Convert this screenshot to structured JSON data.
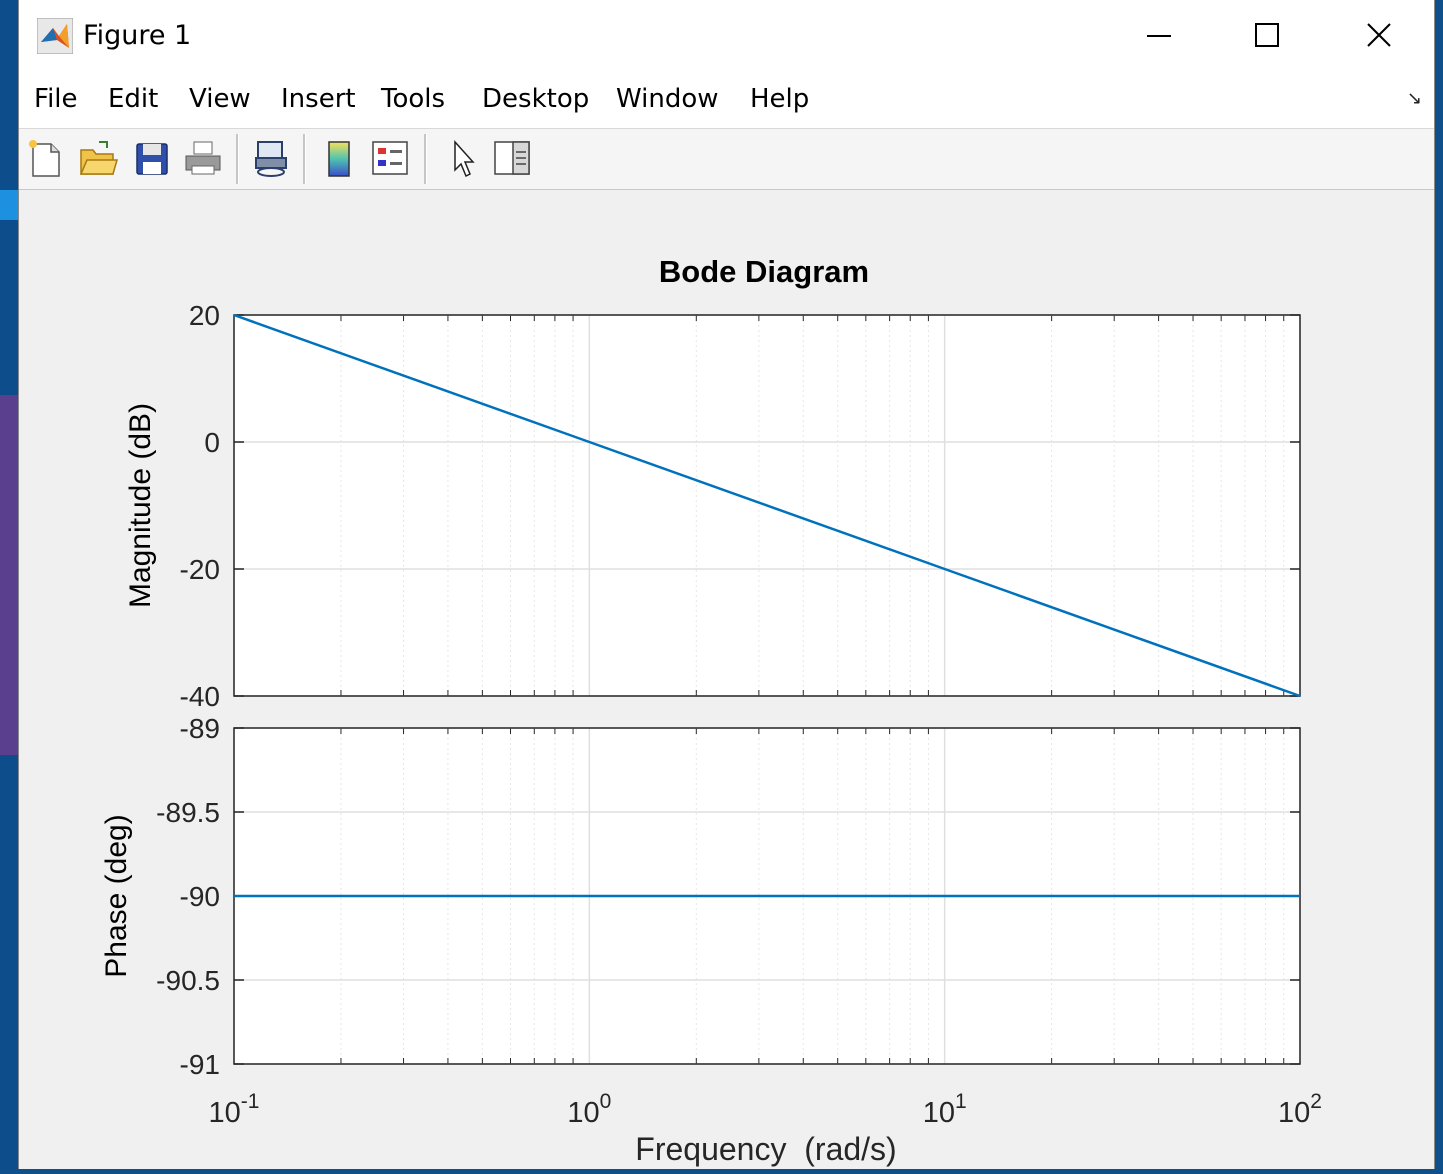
{
  "window": {
    "title": "Figure 1",
    "controls": {
      "minimize": "minimize-icon",
      "maximize": "maximize-icon",
      "close": "close-icon"
    }
  },
  "menubar": {
    "items": [
      "File",
      "Edit",
      "View",
      "Insert",
      "Tools",
      "Desktop",
      "Window",
      "Help"
    ]
  },
  "toolbar": {
    "buttons": [
      "new-figure-icon",
      "open-file-icon",
      "save-icon",
      "print-icon",
      "link-plot-icon",
      "colorbar-icon",
      "legend-icon",
      "edit-plot-arrow-icon",
      "property-inspector-icon"
    ]
  },
  "colors": {
    "line": "#0072bd",
    "axes": "#262626",
    "grid": "#dfdfdf",
    "figure_bg": "#f0f0f0"
  },
  "chart_data": {
    "type": "line",
    "title": "Bode Diagram",
    "xlabel": "Frequency  (rad/s)",
    "x_scale": "log",
    "xlim": [
      0.1,
      100
    ],
    "x_ticks": [
      {
        "value": 0.1,
        "base": "10",
        "exp": "-1"
      },
      {
        "value": 1,
        "base": "10",
        "exp": "0"
      },
      {
        "value": 10,
        "base": "10",
        "exp": "1"
      },
      {
        "value": 100,
        "base": "10",
        "exp": "2"
      }
    ],
    "grid": true,
    "subplots": [
      {
        "name": "magnitude",
        "ylabel": "Magnitude (dB)",
        "ylim": [
          -40,
          20
        ],
        "y_ticks": [
          20,
          0,
          -20,
          -40
        ],
        "y_tick_labels": [
          "20",
          "0",
          "-20",
          "-40"
        ],
        "series": [
          {
            "x": [
              0.1,
              1,
              10,
              100
            ],
            "y": [
              20,
              0,
              -20,
              -40
            ]
          }
        ]
      },
      {
        "name": "phase",
        "ylabel": "Phase (deg)",
        "ylim": [
          -91,
          -89
        ],
        "y_ticks": [
          -89,
          -89.5,
          -90,
          -90.5,
          -91
        ],
        "y_tick_labels": [
          "-89",
          "-89.5",
          "-90",
          "-90.5",
          "-91"
        ],
        "series": [
          {
            "x": [
              0.1,
              1,
              10,
              100
            ],
            "y": [
              -90,
              -90,
              -90,
              -90
            ]
          }
        ]
      }
    ]
  }
}
